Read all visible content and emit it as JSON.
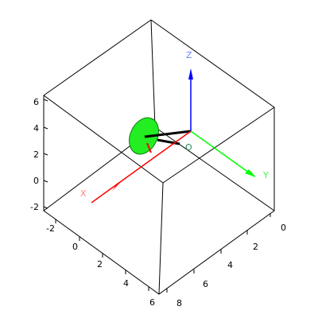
{
  "colors": {
    "background": "#ffffff",
    "box": "#000000",
    "x_axis": "#ff0000",
    "y_axis": "#00ff00",
    "z_axis": "#0000ff",
    "x_label": "#ff8080",
    "y_label": "#33ff33",
    "z_label": "#6b83ff",
    "origin_label": "#2e8b57",
    "disc_fill": "#22ee22",
    "disc_edge": "#117711",
    "rod": "#000000"
  },
  "axes": {
    "x_label": "X",
    "y_label": "Y",
    "z_label": "Z",
    "origin_label": "O"
  },
  "ticks": {
    "vertical": [
      "6",
      "4",
      "2",
      "0",
      "-2"
    ],
    "left_depth": [
      "-2",
      "0",
      "2",
      "4",
      "6"
    ],
    "right_front": [
      "8",
      "6",
      "4",
      "2",
      "0"
    ]
  }
}
